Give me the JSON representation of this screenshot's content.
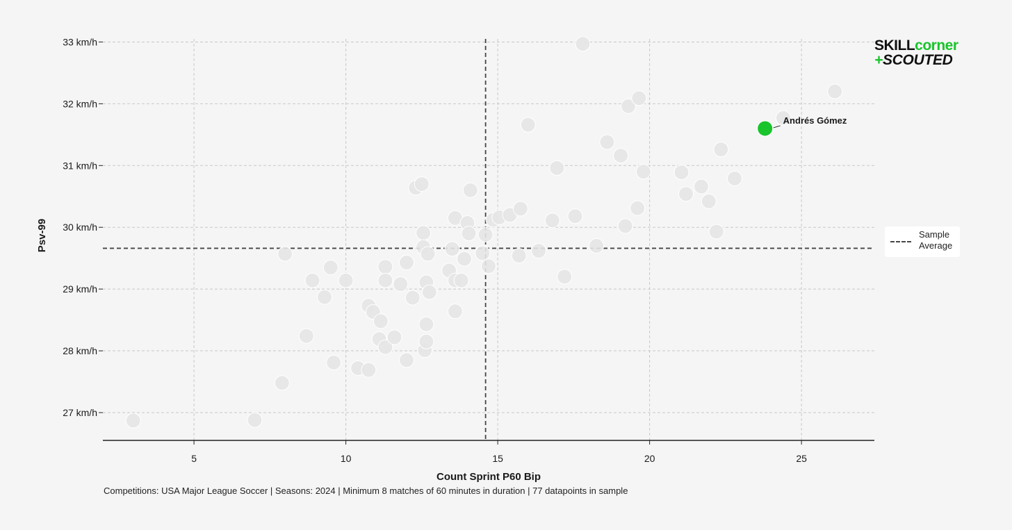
{
  "chart_data": {
    "type": "scatter",
    "xlabel": "Count Sprint P60 Bip",
    "ylabel": "Psv-99",
    "xlim": [
      2,
      27.4
    ],
    "ylim": [
      26.55,
      33.05
    ],
    "x_ticks": [
      5,
      10,
      15,
      20,
      25
    ],
    "y_ticks": [
      27,
      28,
      29,
      30,
      31,
      32,
      33
    ],
    "y_tick_labels": [
      "27 km/h",
      "28 km/h",
      "29 km/h",
      "30 km/h",
      "31 km/h",
      "32 km/h",
      "33 km/h"
    ],
    "grid": true,
    "sample_average": {
      "x": 14.6,
      "y": 29.66
    },
    "legend": {
      "position": "right",
      "label": "Sample Average"
    },
    "highlight": {
      "name": "Andrés Gómez",
      "x": 23.8,
      "y": 31.6,
      "color": "#19c42c"
    },
    "points": [
      {
        "x": 3.0,
        "y": 26.87
      },
      {
        "x": 7.0,
        "y": 26.88
      },
      {
        "x": 7.9,
        "y": 27.48
      },
      {
        "x": 8.0,
        "y": 29.57
      },
      {
        "x": 8.7,
        "y": 28.24
      },
      {
        "x": 8.9,
        "y": 29.14
      },
      {
        "x": 9.3,
        "y": 28.87
      },
      {
        "x": 9.5,
        "y": 29.35
      },
      {
        "x": 9.6,
        "y": 27.81
      },
      {
        "x": 10.0,
        "y": 29.14
      },
      {
        "x": 10.4,
        "y": 27.72
      },
      {
        "x": 10.75,
        "y": 27.69
      },
      {
        "x": 10.75,
        "y": 28.73
      },
      {
        "x": 10.9,
        "y": 28.63
      },
      {
        "x": 11.1,
        "y": 28.19
      },
      {
        "x": 11.15,
        "y": 28.48
      },
      {
        "x": 11.3,
        "y": 29.36
      },
      {
        "x": 11.3,
        "y": 29.14
      },
      {
        "x": 11.3,
        "y": 28.06
      },
      {
        "x": 11.6,
        "y": 28.22
      },
      {
        "x": 11.8,
        "y": 29.08
      },
      {
        "x": 12.0,
        "y": 29.43
      },
      {
        "x": 12.0,
        "y": 27.85
      },
      {
        "x": 12.2,
        "y": 28.86
      },
      {
        "x": 12.3,
        "y": 30.64
      },
      {
        "x": 12.5,
        "y": 30.7
      },
      {
        "x": 12.55,
        "y": 29.91
      },
      {
        "x": 12.55,
        "y": 29.68
      },
      {
        "x": 12.6,
        "y": 28.01
      },
      {
        "x": 12.65,
        "y": 28.15
      },
      {
        "x": 12.65,
        "y": 28.43
      },
      {
        "x": 12.65,
        "y": 29.11
      },
      {
        "x": 12.7,
        "y": 29.57
      },
      {
        "x": 12.75,
        "y": 28.95
      },
      {
        "x": 13.4,
        "y": 29.3
      },
      {
        "x": 13.5,
        "y": 29.65
      },
      {
        "x": 13.6,
        "y": 30.15
      },
      {
        "x": 13.6,
        "y": 29.14
      },
      {
        "x": 13.6,
        "y": 28.64
      },
      {
        "x": 13.8,
        "y": 29.14
      },
      {
        "x": 13.9,
        "y": 29.49
      },
      {
        "x": 14.0,
        "y": 30.07
      },
      {
        "x": 14.05,
        "y": 29.9
      },
      {
        "x": 14.1,
        "y": 30.6
      },
      {
        "x": 14.5,
        "y": 29.58
      },
      {
        "x": 14.6,
        "y": 29.88
      },
      {
        "x": 14.7,
        "y": 29.37
      },
      {
        "x": 14.85,
        "y": 30.12
      },
      {
        "x": 15.05,
        "y": 30.16
      },
      {
        "x": 15.4,
        "y": 30.2
      },
      {
        "x": 15.7,
        "y": 29.54
      },
      {
        "x": 15.75,
        "y": 30.3
      },
      {
        "x": 16.0,
        "y": 31.66
      },
      {
        "x": 16.35,
        "y": 29.62
      },
      {
        "x": 16.8,
        "y": 30.11
      },
      {
        "x": 16.95,
        "y": 30.96
      },
      {
        "x": 17.2,
        "y": 29.2
      },
      {
        "x": 17.55,
        "y": 30.18
      },
      {
        "x": 17.8,
        "y": 32.97
      },
      {
        "x": 18.25,
        "y": 29.7
      },
      {
        "x": 18.6,
        "y": 31.38
      },
      {
        "x": 19.05,
        "y": 31.16
      },
      {
        "x": 19.2,
        "y": 30.02
      },
      {
        "x": 19.3,
        "y": 31.96
      },
      {
        "x": 19.6,
        "y": 30.31
      },
      {
        "x": 19.65,
        "y": 32.09
      },
      {
        "x": 19.8,
        "y": 30.9
      },
      {
        "x": 21.05,
        "y": 30.89
      },
      {
        "x": 21.2,
        "y": 30.54
      },
      {
        "x": 21.7,
        "y": 30.66
      },
      {
        "x": 21.95,
        "y": 30.42
      },
      {
        "x": 22.2,
        "y": 29.93
      },
      {
        "x": 22.35,
        "y": 31.26
      },
      {
        "x": 22.8,
        "y": 30.79
      },
      {
        "x": 24.4,
        "y": 31.77
      },
      {
        "x": 26.1,
        "y": 32.2
      }
    ]
  },
  "caption": "Competitions: USA Major League Soccer | Seasons: 2024 | Minimum 8 matches of 60 minutes in duration | 77 datapoints in sample",
  "logo": {
    "line1_part1": "SKILL",
    "line1_part2": "corner",
    "line2_plus": "+",
    "line2_text": "SCOUTED"
  },
  "colors": {
    "background": "#f5f5f5",
    "point": "#e6e6e6",
    "highlight": "#19c42c",
    "average_line": "#444444",
    "grid": "#c8c8c8"
  }
}
